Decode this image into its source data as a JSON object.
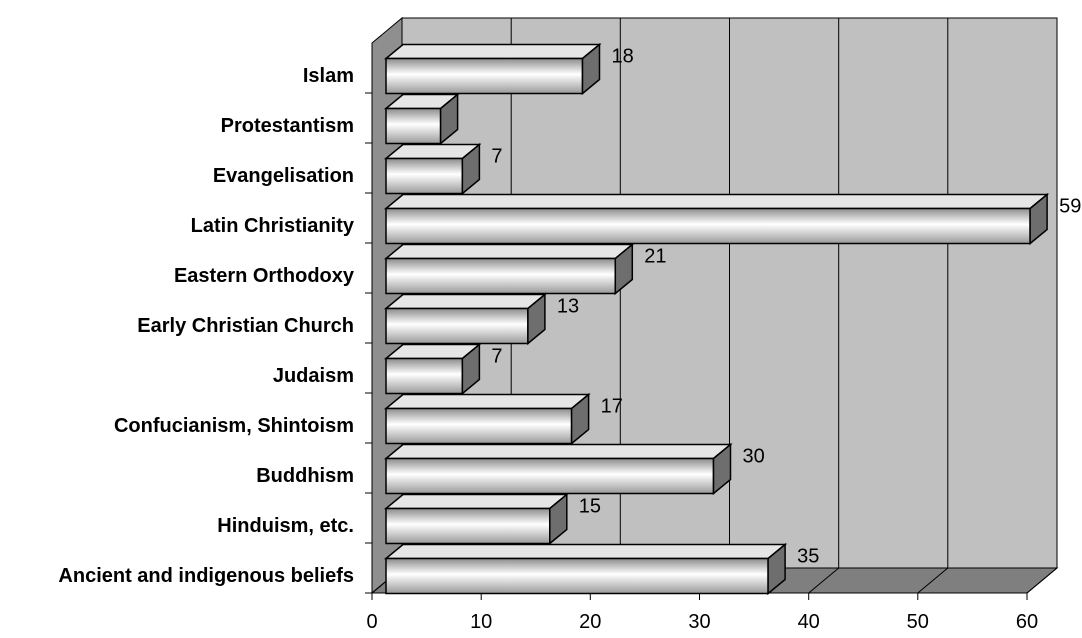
{
  "chart_data": {
    "type": "bar",
    "orientation": "horizontal",
    "categories": [
      "Ancient and indigenous beliefs",
      "Hinduism, etc.",
      "Buddhism",
      "Confucianism, Shintoism",
      "Judaism",
      "Early Christian Church",
      "Eastern Orthodoxy",
      "Latin Christianity",
      "Evangelisation",
      "Protestantism",
      "Islam"
    ],
    "values": [
      35,
      15,
      30,
      17,
      7,
      13,
      21,
      59,
      7,
      5,
      18
    ],
    "data_labels": [
      "35",
      "15",
      "30",
      "17",
      "7",
      "13",
      "21",
      "59",
      "7",
      "",
      "18"
    ],
    "xlim": [
      0,
      60
    ],
    "x_ticks": [
      0,
      10,
      20,
      30,
      40,
      50,
      60
    ],
    "grid": true,
    "legend": "none",
    "colors": {
      "bar_gradient": [
        "#8c8c8c",
        "#ffffff",
        "#9a9a9a"
      ],
      "wall": "#c0c0c0",
      "side_wall": "#8f8f8f",
      "floor": "#7f7f7f"
    }
  }
}
